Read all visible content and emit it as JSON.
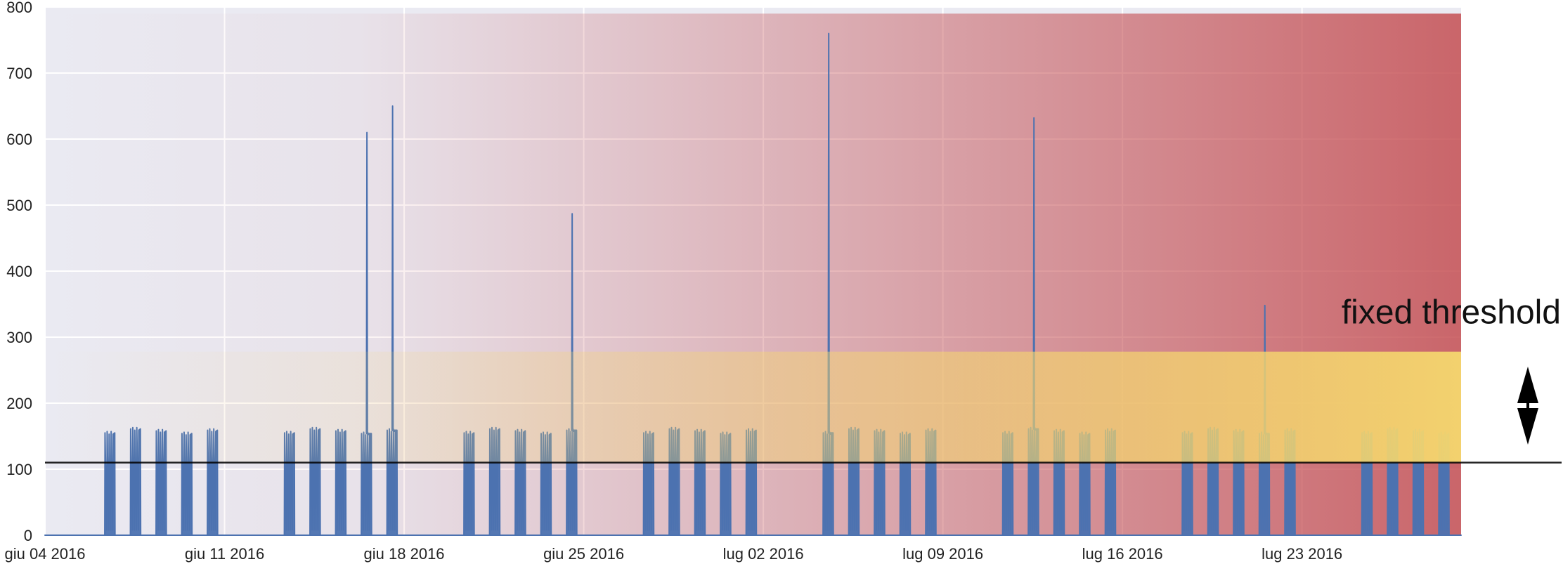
{
  "chart_data": {
    "type": "line",
    "title": "",
    "xlabel": "",
    "ylabel": "",
    "ylim": [
      0,
      800
    ],
    "yticks": [
      0,
      100,
      200,
      300,
      400,
      500,
      600,
      700,
      800
    ],
    "yticks_labels": [
      "0",
      "100",
      "200",
      "300",
      "400",
      "500",
      "600",
      "700",
      "800"
    ],
    "xlim": [
      "2016-06-04",
      "2016-07-29"
    ],
    "xticks": [
      {
        "date": "2016-06-04",
        "label": "giu 04 2016"
      },
      {
        "date": "2016-06-11",
        "label": "giu 11 2016"
      },
      {
        "date": "2016-06-18",
        "label": "giu 18 2016"
      },
      {
        "date": "2016-06-25",
        "label": "giu 25 2016"
      },
      {
        "date": "2016-07-02",
        "label": "lug 02 2016"
      },
      {
        "date": "2016-07-09",
        "label": "lug 09 2016"
      },
      {
        "date": "2016-07-16",
        "label": "lug 16 2016"
      },
      {
        "date": "2016-07-23",
        "label": "lug 23 2016"
      }
    ],
    "grid": true,
    "series": [
      {
        "daily_peak_level": 157,
        "night_level": 0,
        "spikes": [
          {
            "date": "2016-06-16",
            "value": 610
          },
          {
            "date": "2016-06-17",
            "value": 650
          },
          {
            "date": "2016-06-24",
            "value": 487
          },
          {
            "date": "2016-07-04",
            "value": 760
          },
          {
            "date": "2016-07-12",
            "value": 632
          },
          {
            "date": "2016-07-21",
            "value": 348
          }
        ]
      }
    ],
    "annotations": {
      "fixed_threshold_label": "fixed threshold",
      "upper_threshold": 278,
      "lower_threshold": 110,
      "red_zone_top": 790
    },
    "colors": {
      "plot_background": "#eaeaf2",
      "grid": "#ffffff",
      "series": "#4c72b0",
      "red_zone": "#c44e52",
      "yellow_zone": "#f5d76e",
      "threshold_line": "#000000"
    }
  }
}
